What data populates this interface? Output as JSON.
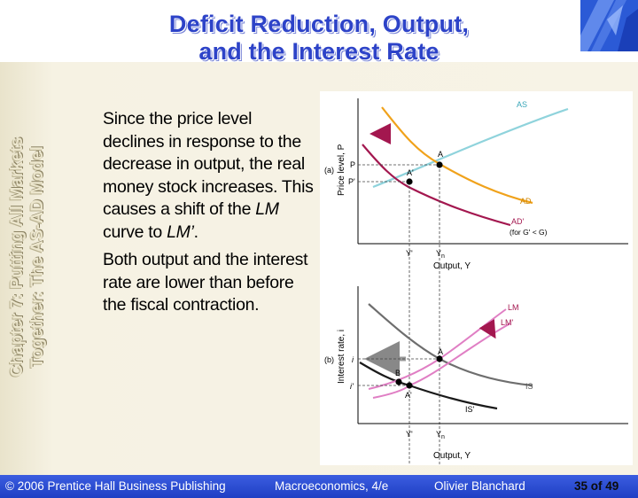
{
  "slide": {
    "title_line1": "Deficit Reduction, Output,",
    "title_line2": "and the Interest Rate",
    "chapter_line1": "Chapter 7: Putting All Markets",
    "chapter_line2": "Together: The AS-AD Model",
    "body": {
      "p1_text": "Since the price level declines in response to the decrease in output, the real money stock increases.  This causes a shift of the ",
      "p1_em1": "LM",
      "p1_mid": " curve to ",
      "p1_em2": "LM’",
      "p1_end": ".",
      "p2": "Both output and the interest rate are lower than before the fiscal contraction."
    }
  },
  "figure": {
    "top": {
      "panel_label": "(a)",
      "ylabel": "Price level, P",
      "xlabel": "Output, Y",
      "tick_P": "P",
      "tick_Pp": "P'",
      "tick_Yp": "Y'",
      "tick_Yn": "Y",
      "tick_Yn_sub": "n",
      "label_AS": "AS",
      "label_AD": "AD",
      "label_ADp": "AD'",
      "label_ADp_note": "(for G' < G)",
      "point_A": "A",
      "point_Ap": "A'"
    },
    "bottom": {
      "panel_label": "(b)",
      "ylabel": "Interest rate, i",
      "xlabel": "Output, Y",
      "tick_i": "i",
      "tick_ip": "i'",
      "tick_Yp": "Y'",
      "tick_Yn": "Y",
      "tick_Yn_sub": "n",
      "label_LM": "LM",
      "label_LMp": "LM'",
      "label_IS": "IS",
      "label_ISp": "IS'",
      "point_A": "A",
      "point_Ap": "A'",
      "point_B": "B"
    },
    "colors": {
      "AS": "#8fd3dc",
      "AD": "#f0a21b",
      "ADp": "#a3174f",
      "LM": "#e07fc4",
      "IS": "#6e6e6e",
      "ISp": "#1a1a1a",
      "arrow_gray": "#888888"
    }
  },
  "footer": {
    "copyright": "© 2006 Prentice Hall Business Publishing",
    "book": "Macroeconomics, 4/e",
    "author": "Olivier Blanchard",
    "page": "35 of 49"
  }
}
